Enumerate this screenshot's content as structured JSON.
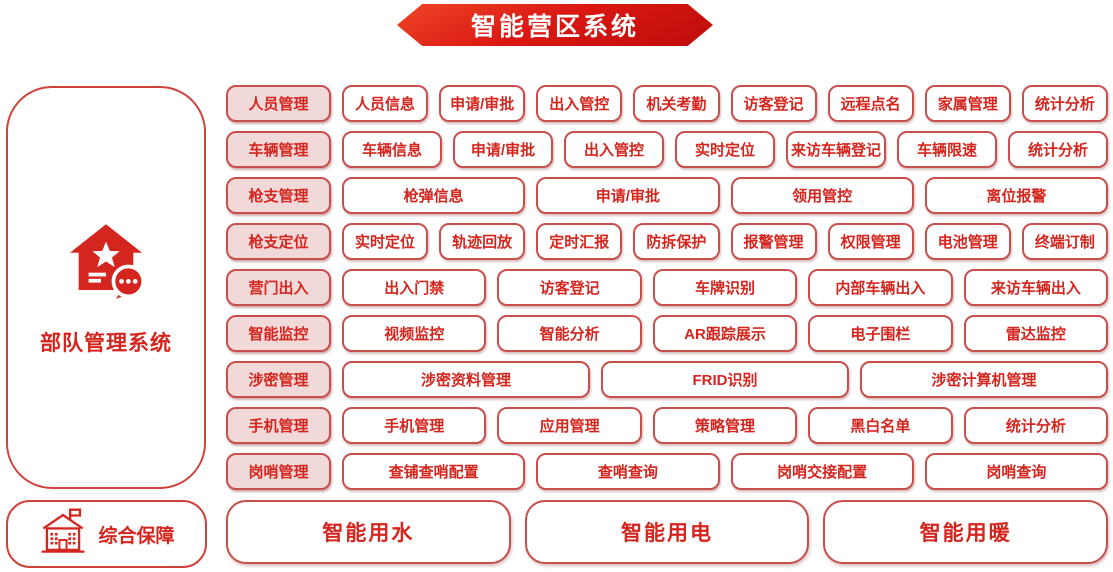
{
  "title": "智能营区系统",
  "colors": {
    "banner_red_start": "#ef4526",
    "banner_red_end": "#bd0d0a",
    "box_border": "#c8504c",
    "text_red": "#d4261f",
    "category_bg": "#f1d9d9",
    "white": "#ffffff"
  },
  "sidebar": {
    "label": "部队管理系统",
    "icon": "house-star-chat-icon"
  },
  "rows": [
    {
      "category": "人员管理",
      "items": [
        "人员信息",
        "申请/审批",
        "出入管控",
        "机关考勤",
        "访客登记",
        "远程点名",
        "家属管理",
        "统计分析"
      ]
    },
    {
      "category": "车辆管理",
      "items": [
        "车辆信息",
        "申请/审批",
        "出入管控",
        "实时定位",
        "来访车辆登记",
        "车辆限速",
        "统计分析"
      ]
    },
    {
      "category": "枪支管理",
      "items": [
        "枪弹信息",
        "申请/审批",
        "领用管控",
        "离位报警"
      ]
    },
    {
      "category": "枪支定位",
      "items": [
        "实时定位",
        "轨迹回放",
        "定时汇报",
        "防拆保护",
        "报警管理",
        "权限管理",
        "电池管理",
        "终端订制"
      ]
    },
    {
      "category": "营门出入",
      "items": [
        "出入门禁",
        "访客登记",
        "车牌识别",
        "内部车辆出入",
        "来访车辆出入"
      ]
    },
    {
      "category": "智能监控",
      "items": [
        "视频监控",
        "智能分析",
        "AR跟踪展示",
        "电子围栏",
        "雷达监控"
      ]
    },
    {
      "category": "涉密管理",
      "items": [
        "涉密资料管理",
        "FRID识别",
        "涉密计算机管理"
      ]
    },
    {
      "category": "手机管理",
      "items": [
        "手机管理",
        "应用管理",
        "策略管理",
        "黑白名单",
        "统计分析"
      ]
    },
    {
      "category": "岗哨管理",
      "items": [
        "查铺查哨配置",
        "查哨查询",
        "岗哨交接配置",
        "岗哨查询"
      ]
    }
  ],
  "bottom": {
    "category": "综合保障",
    "icon": "building-flag-icon",
    "items": [
      "智能用水",
      "智能用电",
      "智能用暖"
    ]
  }
}
